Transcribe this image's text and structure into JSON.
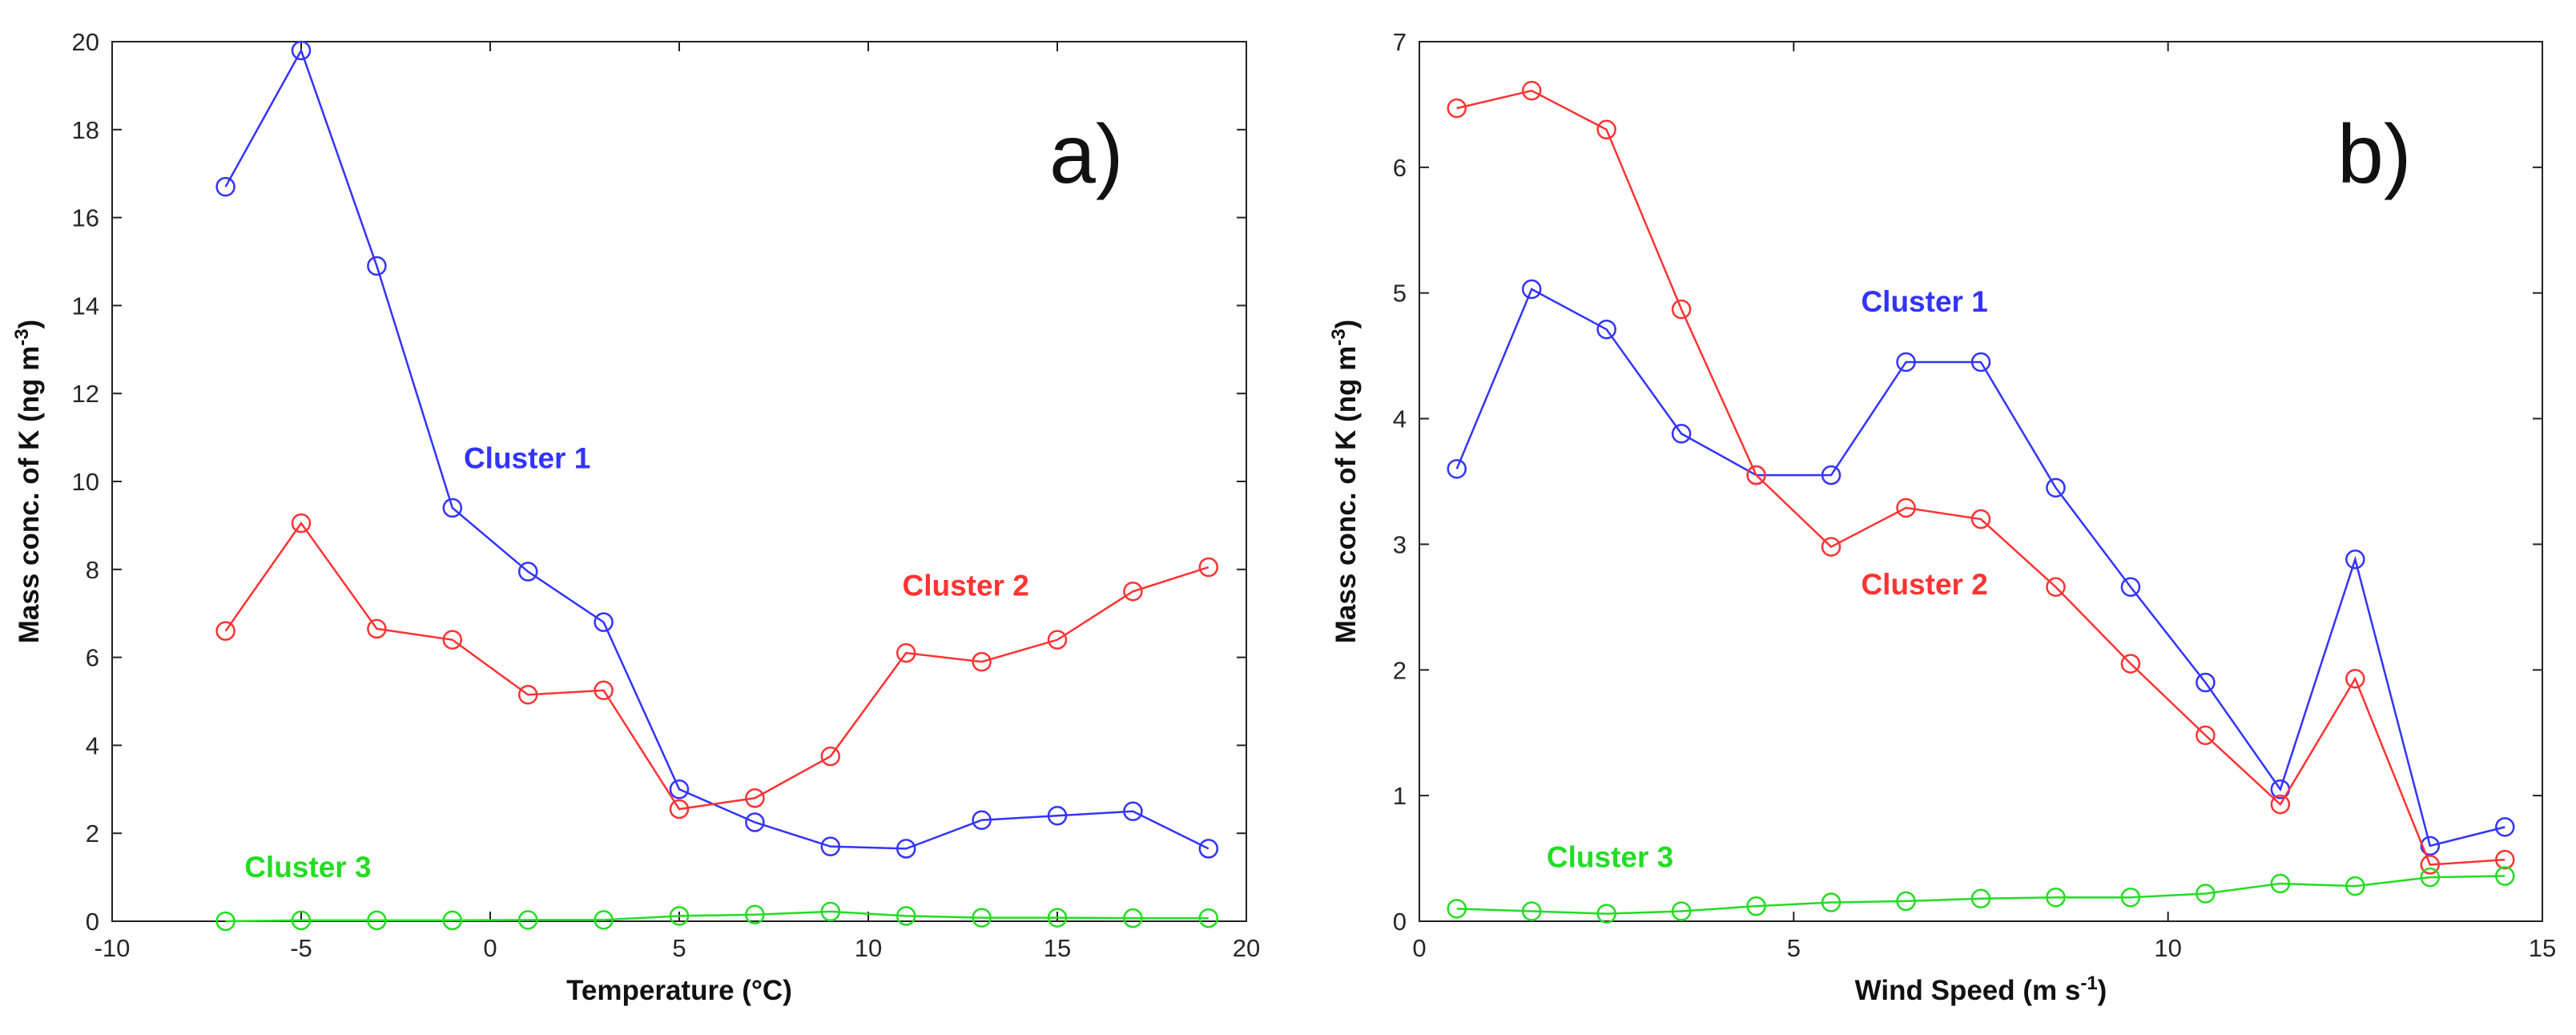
{
  "chart_data": [
    {
      "type": "line",
      "panel_label": "a)",
      "xlabel": "Temperature (°C)",
      "ylabel": "Mass conc. of K (ng m",
      "ylabel_sup": "-3",
      "ylabel_end": ")",
      "xlim": [
        -10,
        20
      ],
      "ylim": [
        0,
        20
      ],
      "xticks": [
        -10,
        -5,
        0,
        5,
        10,
        15,
        20
      ],
      "yticks": [
        0,
        2,
        4,
        6,
        8,
        10,
        12,
        14,
        16,
        18,
        20
      ],
      "x": [
        -7,
        -5,
        -3,
        -1,
        1,
        3,
        5,
        7,
        9,
        11,
        13,
        15,
        17,
        19
      ],
      "series": [
        {
          "name": "Cluster 1",
          "color": "#3333ff",
          "label_pos": [
            -0.7,
            10.3
          ],
          "values": [
            16.7,
            19.8,
            14.9,
            9.4,
            7.95,
            6.8,
            3.0,
            2.25,
            1.7,
            1.65,
            2.3,
            2.4,
            2.5,
            1.65
          ]
        },
        {
          "name": "Cluster 2",
          "color": "#ff3333",
          "label_pos": [
            10.9,
            7.4
          ],
          "values": [
            6.6,
            9.05,
            6.65,
            6.4,
            5.15,
            5.25,
            2.55,
            2.8,
            3.75,
            6.1,
            5.9,
            6.4,
            7.5,
            8.05
          ]
        },
        {
          "name": "Cluster 3",
          "color": "#22dd22",
          "label_pos": [
            -6.5,
            1.0
          ],
          "values": [
            0.0,
            0.02,
            0.02,
            0.02,
            0.03,
            0.03,
            0.12,
            0.15,
            0.22,
            0.12,
            0.08,
            0.08,
            0.07,
            0.07
          ]
        }
      ]
    },
    {
      "type": "line",
      "panel_label": "b)",
      "xlabel": "Wind Speed (m s",
      "xlabel_sup": "-1",
      "xlabel_end": ")",
      "ylabel": "Mass conc. of K (ng m",
      "ylabel_sup": "-3",
      "ylabel_end": ")",
      "xlim": [
        0,
        15
      ],
      "ylim": [
        0,
        7
      ],
      "xticks": [
        0,
        5,
        10,
        15
      ],
      "yticks": [
        0,
        1,
        2,
        3,
        4,
        5,
        6,
        7
      ],
      "x": [
        0.5,
        1.5,
        2.5,
        3.5,
        4.5,
        5.5,
        6.5,
        7.5,
        8.5,
        9.5,
        10.5,
        11.5,
        12.5,
        13.5,
        14.5
      ],
      "series": [
        {
          "name": "Cluster 1",
          "color": "#3333ff",
          "label_pos": [
            5.9,
            4.85
          ],
          "values": [
            3.6,
            5.03,
            4.71,
            3.88,
            3.55,
            3.55,
            4.45,
            4.45,
            3.45,
            2.66,
            1.9,
            1.05,
            2.88,
            0.6,
            0.75
          ]
        },
        {
          "name": "Cluster 2",
          "color": "#ff3333",
          "label_pos": [
            5.9,
            2.6
          ],
          "values": [
            6.47,
            6.61,
            6.3,
            4.87,
            3.55,
            2.98,
            3.29,
            3.2,
            2.66,
            2.05,
            1.48,
            0.93,
            1.93,
            0.45,
            0.49
          ]
        },
        {
          "name": "Cluster 3",
          "color": "#22dd22",
          "label_pos": [
            1.7,
            0.43
          ],
          "values": [
            0.1,
            0.08,
            0.06,
            0.08,
            0.12,
            0.15,
            0.16,
            0.18,
            0.19,
            0.19,
            0.22,
            0.3,
            0.28,
            0.35,
            0.36
          ]
        }
      ]
    }
  ]
}
